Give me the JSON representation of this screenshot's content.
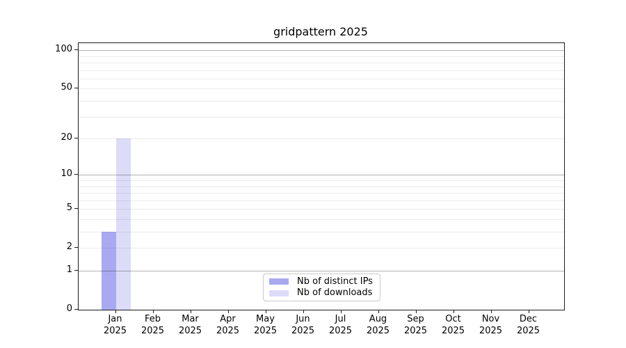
{
  "chart_data": {
    "type": "bar",
    "title": "gridpattern 2025",
    "categories": [
      "Jan",
      "Feb",
      "Mar",
      "Apr",
      "May",
      "Jun",
      "Jul",
      "Aug",
      "Sep",
      "Oct",
      "Nov",
      "Dec"
    ],
    "year": "2025",
    "series": [
      {
        "name": "Nb of distinct IPs",
        "color": "#a9a9f1",
        "values": [
          3,
          0,
          0,
          0,
          0,
          0,
          0,
          0,
          0,
          0,
          0,
          0
        ]
      },
      {
        "name": "Nb of downloads",
        "color": "#dcdcf8",
        "values": [
          20,
          0,
          0,
          0,
          0,
          0,
          0,
          0,
          0,
          0,
          0,
          0
        ]
      }
    ],
    "xlabel": "",
    "ylabel": "",
    "yscale": "log10(value+1)",
    "y_ticks": [
      0,
      1,
      2,
      5,
      10,
      20,
      50,
      100
    ],
    "y_major_gridlines": [
      1,
      10,
      100
    ],
    "y_minor_gridlines": [
      2,
      3,
      4,
      5,
      6,
      7,
      8,
      9,
      20,
      30,
      40,
      50,
      60,
      70,
      80,
      90
    ],
    "ylim": [
      0,
      113.6
    ],
    "grid": true,
    "legend_position": "lower center"
  }
}
